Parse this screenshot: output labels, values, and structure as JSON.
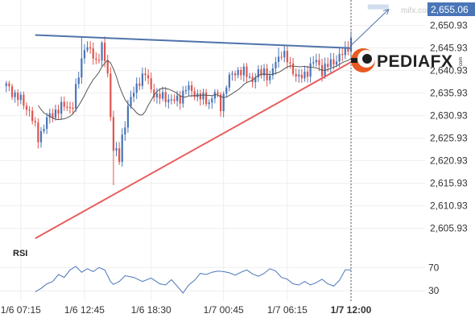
{
  "brand": {
    "logo_text": "PEDIAFX",
    "logo_suffix": "com",
    "watermark": "mifx.com"
  },
  "colors": {
    "up_candle": "#4a76b8",
    "down_candle": "#e0564f",
    "resistance_line": "#4f73ab",
    "support_line": "#e85e5e",
    "moving_average": "#555555",
    "rsi_line": "#4a76b8",
    "price_badge": "#4a76b8",
    "grid": "#eeeeee"
  },
  "chart_data": [
    {
      "type": "candlestick",
      "title": "",
      "current_price": "2,655.06",
      "y_tick_labels": [
        "2,650.93",
        "2,645.93",
        "2,640.93",
        "2,635.93",
        "2,630.93",
        "2,625.93",
        "2,620.93",
        "2,615.93",
        "2,610.93",
        "2,605.93"
      ],
      "y_ticks": [
        2650.93,
        2645.93,
        2640.93,
        2635.93,
        2630.93,
        2625.93,
        2620.93,
        2615.93,
        2610.93,
        2605.93
      ],
      "ylim": [
        2603,
        2655.5
      ],
      "x_tick_labels": [
        "1/6 07:15",
        "1/6 12:45",
        "1/6 18:30",
        "1/7 00:45",
        "1/7 06:15",
        "1/7 12:00"
      ],
      "x_ticks": [
        5,
        27,
        50,
        75,
        97,
        119
      ],
      "bold_last_x_tick": true,
      "bar_count": 120,
      "grid": true,
      "close_path": [
        [
          0,
          2637.5
        ],
        [
          4,
          2635
        ],
        [
          8,
          2632
        ],
        [
          11,
          2626
        ],
        [
          14,
          2630
        ],
        [
          17,
          2632
        ],
        [
          20,
          2633
        ],
        [
          23,
          2633
        ],
        [
          25,
          2640
        ],
        [
          27,
          2646.5
        ],
        [
          29,
          2645
        ],
        [
          31,
          2643
        ],
        [
          33,
          2646
        ],
        [
          35,
          2640
        ],
        [
          36,
          2631
        ],
        [
          37,
          2624
        ],
        [
          39,
          2621
        ],
        [
          40,
          2626
        ],
        [
          42,
          2633
        ],
        [
          44,
          2636
        ],
        [
          46,
          2639
        ],
        [
          48,
          2640
        ],
        [
          50,
          2637
        ],
        [
          52,
          2635
        ],
        [
          55,
          2635
        ],
        [
          58,
          2634
        ],
        [
          60,
          2635
        ],
        [
          62,
          2637
        ],
        [
          65,
          2636
        ],
        [
          67,
          2635
        ],
        [
          70,
          2634
        ],
        [
          72,
          2636
        ],
        [
          74,
          2633
        ],
        [
          76,
          2638
        ],
        [
          78,
          2640
        ],
        [
          80,
          2641
        ],
        [
          83,
          2640
        ],
        [
          85,
          2639
        ],
        [
          87,
          2640
        ],
        [
          89,
          2641
        ],
        [
          91,
          2639
        ],
        [
          93,
          2643
        ],
        [
          95,
          2645
        ],
        [
          97,
          2643
        ],
        [
          99,
          2641
        ],
        [
          101,
          2639
        ],
        [
          103,
          2640
        ],
        [
          105,
          2642
        ],
        [
          107,
          2643
        ],
        [
          109,
          2641
        ],
        [
          111,
          2642
        ],
        [
          113,
          2643
        ],
        [
          115,
          2644
        ],
        [
          117,
          2645
        ],
        [
          118,
          2646.5
        ],
        [
          119,
          2648
        ]
      ],
      "spikes": [
        {
          "bar": 37,
          "low": 2615.5
        },
        {
          "bar": 26,
          "high": 2648.5
        },
        {
          "bar": 33,
          "high": 2647.5
        },
        {
          "bar": 94,
          "high": 2646
        }
      ],
      "moving_average_period": 12,
      "trendlines": [
        {
          "name": "resistance",
          "from": [
            10,
            2648.8
          ],
          "to": [
            119,
            2645.9
          ]
        },
        {
          "name": "support",
          "from": [
            10,
            2603.7
          ],
          "to": [
            119,
            2642.8
          ]
        }
      ],
      "projection_arrow": {
        "from": [
          119,
          2646.5
        ],
        "to": [
          132,
          2654.5
        ]
      },
      "current_time_marker": 119
    },
    {
      "type": "line",
      "title": "RSI",
      "y_tick_labels": [
        "70",
        "30"
      ],
      "y_ticks": [
        70,
        30
      ],
      "ylim": [
        15,
        90
      ],
      "path": [
        [
          10,
          28
        ],
        [
          12,
          34
        ],
        [
          14,
          42
        ],
        [
          16,
          46
        ],
        [
          18,
          58
        ],
        [
          20,
          53
        ],
        [
          22,
          66
        ],
        [
          24,
          72
        ],
        [
          26,
          62
        ],
        [
          28,
          68
        ],
        [
          30,
          63
        ],
        [
          32,
          70
        ],
        [
          34,
          66
        ],
        [
          36,
          46
        ],
        [
          37,
          41
        ],
        [
          39,
          46
        ],
        [
          41,
          56
        ],
        [
          44,
          53
        ],
        [
          47,
          46
        ],
        [
          50,
          52
        ],
        [
          53,
          42
        ],
        [
          55,
          40
        ],
        [
          57,
          49
        ],
        [
          59,
          38
        ],
        [
          61,
          26
        ],
        [
          63,
          40
        ],
        [
          65,
          48
        ],
        [
          67,
          60
        ],
        [
          69,
          58
        ],
        [
          71,
          62
        ],
        [
          73,
          64
        ],
        [
          75,
          63
        ],
        [
          77,
          61
        ],
        [
          79,
          57
        ],
        [
          81,
          62
        ],
        [
          83,
          66
        ],
        [
          85,
          59
        ],
        [
          87,
          55
        ],
        [
          89,
          60
        ],
        [
          91,
          68
        ],
        [
          93,
          64
        ],
        [
          95,
          53
        ],
        [
          97,
          50
        ],
        [
          99,
          42
        ],
        [
          101,
          40
        ],
        [
          103,
          46
        ],
        [
          105,
          40
        ],
        [
          107,
          44
        ],
        [
          109,
          50
        ],
        [
          111,
          42
        ],
        [
          113,
          38
        ],
        [
          115,
          48
        ],
        [
          117,
          66
        ],
        [
          119,
          66
        ]
      ]
    }
  ]
}
